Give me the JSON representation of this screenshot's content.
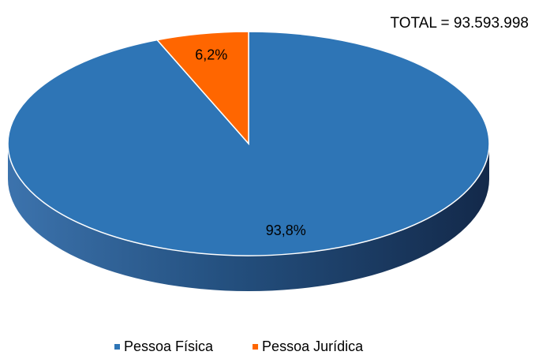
{
  "chart_data": {
    "type": "pie3d",
    "annotation": "TOTAL = 93.593.998",
    "categories": [
      "Pessoa Física",
      "Pessoa Jurídica"
    ],
    "values": [
      93.8,
      6.2
    ],
    "value_labels": [
      "93,8%",
      "6,2%"
    ],
    "colors": [
      "#2e75b6",
      "#ff6600"
    ],
    "legend": "bottom"
  }
}
